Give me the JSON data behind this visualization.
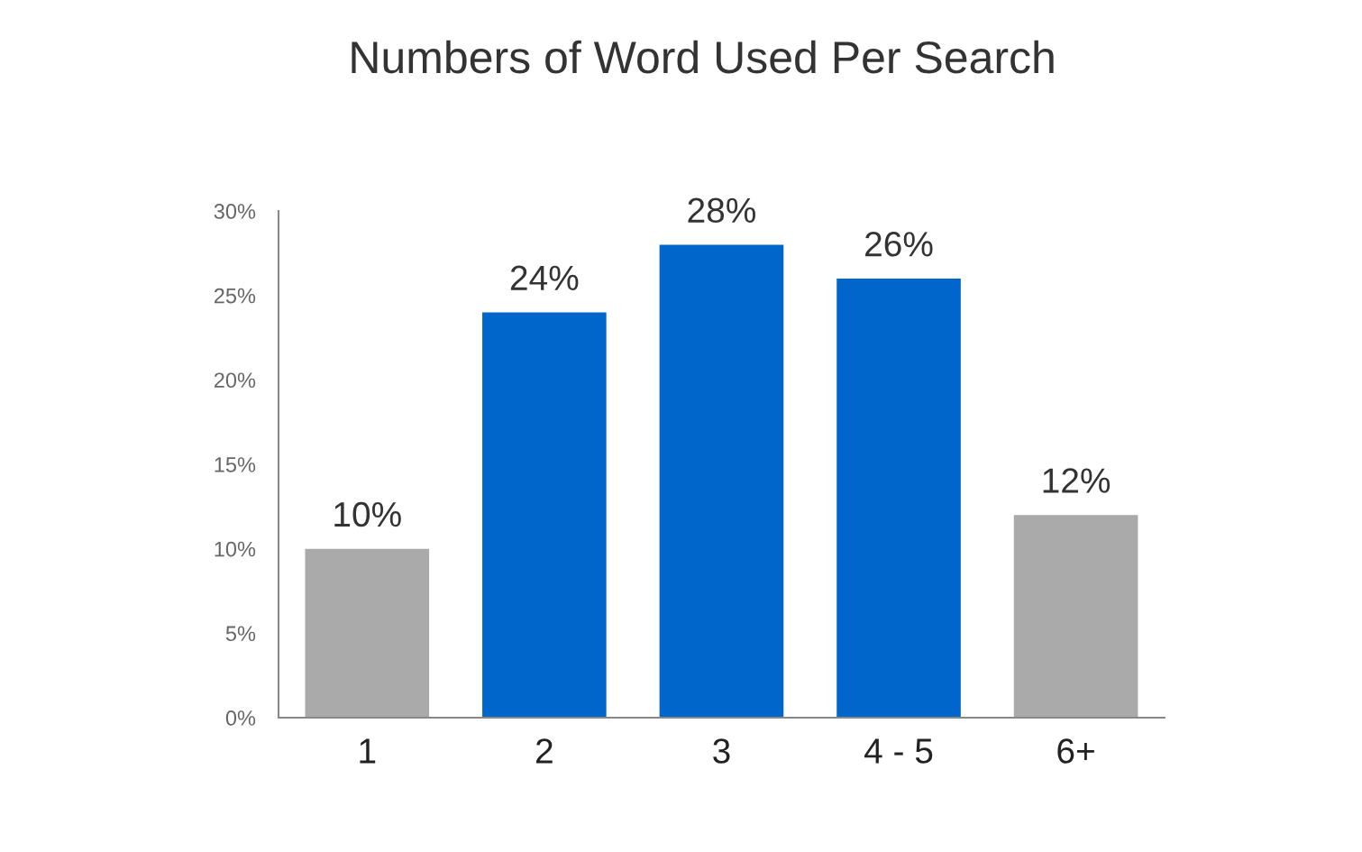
{
  "chart_data": {
    "type": "bar",
    "title": "Numbers of Word Used Per Search",
    "categories": [
      "1",
      "2",
      "3",
      "4 - 5",
      "6+"
    ],
    "values": [
      10,
      24,
      28,
      26,
      12
    ],
    "colors": [
      "#aaaaaa",
      "#0066cc",
      "#0066cc",
      "#0066cc",
      "#aaaaaa"
    ],
    "value_labels": [
      "10%",
      "24%",
      "28%",
      "26%",
      "12%"
    ],
    "ylim": [
      0,
      30
    ],
    "yticks": [
      {
        "value": 0,
        "label": "0%"
      },
      {
        "value": 5,
        "label": "5%"
      },
      {
        "value": 10,
        "label": "10%"
      },
      {
        "value": 15,
        "label": "15%"
      },
      {
        "value": 20,
        "label": "20%"
      },
      {
        "value": 25,
        "label": "25%"
      },
      {
        "value": 30,
        "label": "30%"
      }
    ],
    "grid": false,
    "legend": false
  }
}
